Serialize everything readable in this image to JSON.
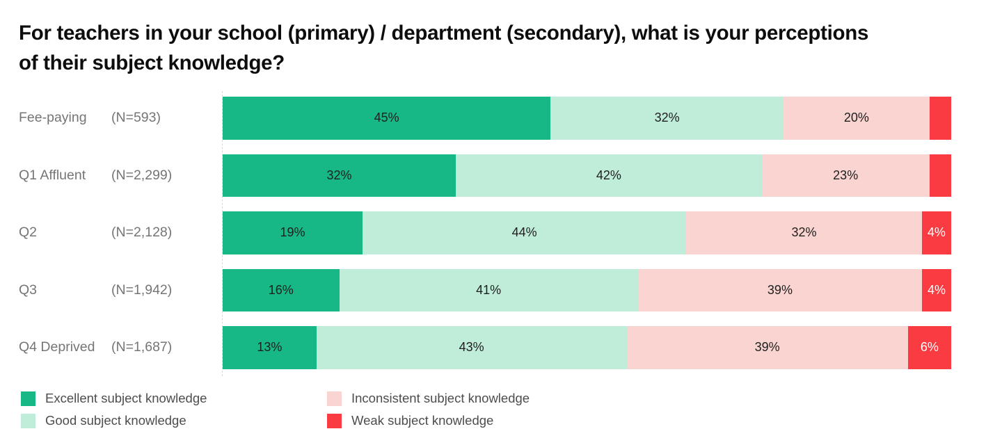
{
  "title": {
    "line1": "For teachers in your school (primary) / department (secondary), what is your perceptions",
    "line2": "of their subject knowledge?"
  },
  "colors": {
    "excellent": "#17b886",
    "good": "#c0edd9",
    "inconsistent": "#f9d4d0",
    "weak": "#fa3b41",
    "bar_label_dark": "#1e1e1e",
    "bar_label_light": "#ffffff",
    "row_label_gray": "#757575",
    "legend_text": "#4d4d4d"
  },
  "chart_data": {
    "type": "bar",
    "stacked": true,
    "orientation": "horizontal",
    "title": "For teachers in your school (primary) / department (secondary), what is your perceptions of their subject knowledge?",
    "categories": [
      "Fee-paying",
      "Q1 Affluent",
      "Q2",
      "Q3",
      "Q4 Deprived"
    ],
    "sample_sizes": [
      "(N=593)",
      "(N=2,299)",
      "(N=2,128)",
      "(N=1,942)",
      "(N=1,687)"
    ],
    "series": [
      {
        "name": "Excellent subject knowledge",
        "color": "#17b886",
        "text_color": "#1e1e1e",
        "values": [
          45,
          32,
          19,
          16,
          13
        ],
        "labels": [
          "45%",
          "32%",
          "19%",
          "16%",
          "13%"
        ]
      },
      {
        "name": "Good subject knowledge",
        "color": "#c0edd9",
        "text_color": "#1e1e1e",
        "values": [
          32,
          42,
          44,
          41,
          43
        ],
        "labels": [
          "32%",
          "42%",
          "44%",
          "41%",
          "43%"
        ]
      },
      {
        "name": "Inconsistent subject knowledge",
        "color": "#f9d4d0",
        "text_color": "#1e1e1e",
        "values": [
          20,
          23,
          32,
          39,
          39
        ],
        "labels": [
          "20%",
          "23%",
          "32%",
          "39%",
          "39%"
        ]
      },
      {
        "name": "Weak subject knowledge",
        "color": "#fa3b41",
        "text_color": "#ffffff",
        "values": [
          3,
          3,
          4,
          4,
          6
        ],
        "labels": [
          "",
          "",
          "4%",
          "4%",
          "6%"
        ]
      }
    ],
    "value_format": "percent",
    "xlim": [
      0,
      100
    ],
    "grid": false,
    "legend_position": "bottom",
    "legend_columns": [
      [
        0,
        1
      ],
      [
        2,
        3
      ]
    ]
  }
}
